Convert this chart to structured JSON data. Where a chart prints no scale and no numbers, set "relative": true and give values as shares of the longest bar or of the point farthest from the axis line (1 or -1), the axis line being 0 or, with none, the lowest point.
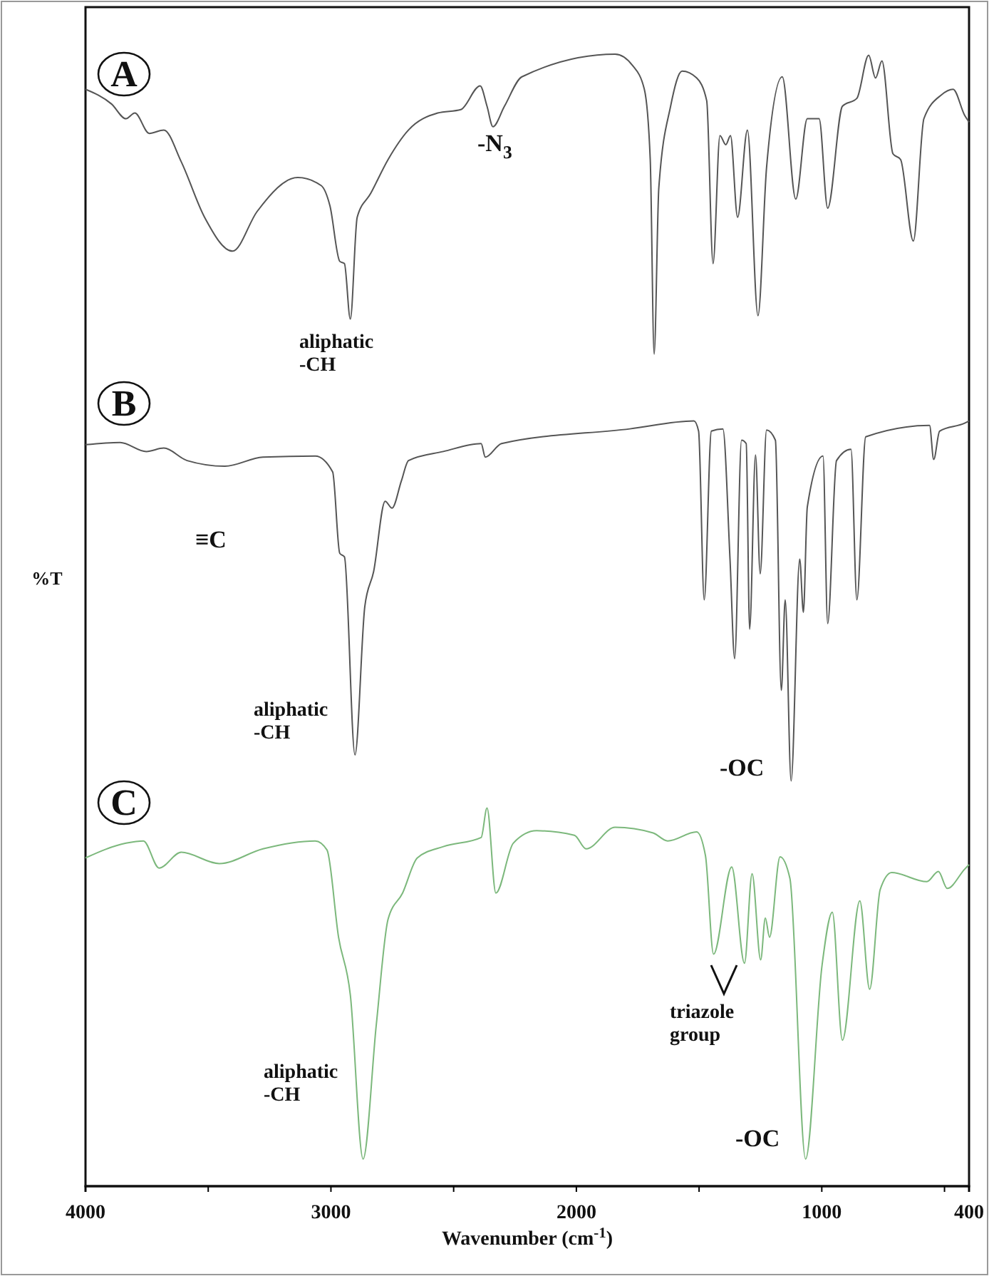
{
  "chart_data": {
    "type": "line",
    "relative": true,
    "xlabel": "Wavenumber (cm$^{-1}$)",
    "ylabel": "%T",
    "xlim": [
      4000,
      400
    ],
    "xticks": [
      4000,
      {
        "value": 3500,
        "label": null
      },
      3000,
      {
        "value": 2500,
        "label": null
      },
      2000,
      {
        "value": 1500,
        "label": null
      },
      1000,
      {
        "value": 500,
        "label": null
      },
      400
    ],
    "grid": false,
    "series": [
      {
        "color": "#555555",
        "x": [
          4000,
          3894,
          3835,
          3799,
          3740,
          3681,
          3610,
          3515,
          3401,
          3301,
          3135,
          3040,
          3004,
          2964,
          2945,
          2921,
          2893,
          2838,
          2767,
          2684,
          2565,
          2471,
          2392,
          2364,
          2340,
          2293,
          2222,
          1842,
          1771,
          1723,
          1699,
          1683,
          1664,
          1616,
          1569,
          1510,
          1469,
          1443,
          1415,
          1391,
          1372,
          1343,
          1303,
          1260,
          1225,
          1161,
          1106,
          1059,
          1011,
          976,
          916,
          857,
          809,
          781,
          755,
          710,
          679,
          627,
          584,
          513,
          465,
          418,
          400
        ],
        "values": [
          0.969,
          0.956,
          0.943,
          0.948,
          0.93,
          0.933,
          0.905,
          0.856,
          0.826,
          0.861,
          0.891,
          0.884,
          0.866,
          0.817,
          0.815,
          0.766,
          0.856,
          0.877,
          0.907,
          0.933,
          0.948,
          0.951,
          0.972,
          0.954,
          0.936,
          0.954,
          0.98,
          1.0,
          0.99,
          0.969,
          0.907,
          0.735,
          0.882,
          0.954,
          0.985,
          0.979,
          0.959,
          0.815,
          0.928,
          0.92,
          0.928,
          0.856,
          0.933,
          0.769,
          0.9,
          0.98,
          0.872,
          0.943,
          0.943,
          0.864,
          0.954,
          0.961,
          0.999,
          0.979,
          0.994,
          0.912,
          0.907,
          0.835,
          0.943,
          0.964,
          0.969,
          0.946,
          0.94
        ]
      },
      {
        "color": "#555555",
        "x": [
          4000,
          3859,
          3752,
          3681,
          3586,
          3432,
          3277,
          3064,
          2993,
          2964,
          2945,
          2902,
          2862,
          2826,
          2779,
          2751,
          2713,
          2684,
          2542,
          2388,
          2371,
          2305,
          1782,
          1521,
          1502,
          1479,
          1450,
          1403,
          1374,
          1355,
          1327,
          1308,
          1294,
          1270,
          1251,
          1225,
          1189,
          1165,
          1149,
          1125,
          1090,
          1075,
          1059,
          995,
          976,
          940,
          881,
          857,
          821,
          561,
          544,
          520,
          418,
          400
        ],
        "values": [
          0.655,
          0.657,
          0.649,
          0.652,
          0.641,
          0.636,
          0.644,
          0.645,
          0.631,
          0.559,
          0.556,
          0.381,
          0.512,
          0.543,
          0.605,
          0.599,
          0.623,
          0.641,
          0.649,
          0.656,
          0.644,
          0.656,
          0.669,
          0.676,
          0.667,
          0.518,
          0.667,
          0.669,
          0.554,
          0.466,
          0.659,
          0.656,
          0.492,
          0.646,
          0.541,
          0.668,
          0.659,
          0.438,
          0.518,
          0.358,
          0.554,
          0.507,
          0.6,
          0.645,
          0.497,
          0.641,
          0.651,
          0.518,
          0.662,
          0.672,
          0.642,
          0.667,
          0.674,
          0.676
        ]
      },
      {
        "color": "#7cb87c",
        "x": [
          4000,
          3835,
          3764,
          3700,
          3610,
          3455,
          3277,
          3064,
          3016,
          2969,
          2921,
          2869,
          2815,
          2767,
          2708,
          2648,
          2542,
          2388,
          2364,
          2328,
          2257,
          2162,
          2008,
          1960,
          1842,
          1687,
          1628,
          1510,
          1474,
          1441,
          1367,
          1315,
          1284,
          1249,
          1230,
          1213,
          1170,
          1130,
          1066,
          999,
          957,
          916,
          845,
          805,
          762,
          715,
          572,
          525,
          489,
          418,
          400
        ],
        "values": [
          0.29,
          0.303,
          0.305,
          0.281,
          0.295,
          0.285,
          0.298,
          0.305,
          0.297,
          0.22,
          0.169,
          0.024,
          0.143,
          0.236,
          0.259,
          0.29,
          0.3,
          0.308,
          0.334,
          0.259,
          0.303,
          0.314,
          0.31,
          0.298,
          0.317,
          0.312,
          0.305,
          0.313,
          0.292,
          0.205,
          0.282,
          0.197,
          0.276,
          0.2,
          0.237,
          0.22,
          0.291,
          0.272,
          0.024,
          0.195,
          0.242,
          0.129,
          0.252,
          0.174,
          0.262,
          0.277,
          0.269,
          0.278,
          0.263,
          0.28,
          0.284
        ]
      }
    ],
    "annotations": [
      "A",
      "-N$_{3}$",
      "aliphatic\n-CH",
      "B",
      "≡C",
      "aliphatic\n-CH",
      "-OC",
      "C",
      "triazole\ngroup",
      "aliphatic\n-CH",
      "-OC"
    ]
  }
}
